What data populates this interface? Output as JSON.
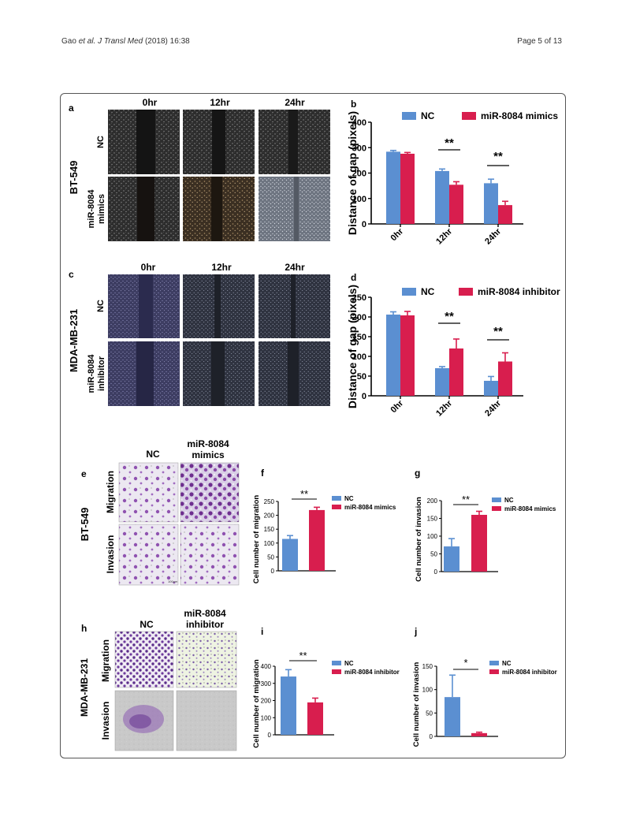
{
  "header": {
    "left_prefix": "Gao ",
    "left_italic": "et al. J Transl Med",
    "left_suffix": "  (2018) 16:38",
    "right": "Page 5 of 13"
  },
  "colors": {
    "nc": "#5b8fd1",
    "treat": "#d81e4e"
  },
  "panels": {
    "a": {
      "letter": "a",
      "cols": [
        "0hr",
        "12hr",
        "24hr"
      ],
      "rows": [
        "NC",
        "miR-8084",
        "mimics"
      ],
      "cell_line": "BT-549"
    },
    "c": {
      "letter": "c",
      "cols": [
        "0hr",
        "12hr",
        "24hr"
      ],
      "rows": [
        "NC",
        "miR-8084",
        "inhibitor"
      ],
      "cell_line": "MDA-MB-231"
    },
    "e": {
      "letter": "e",
      "cols": [
        "NC",
        "miR-8084",
        "mimics"
      ],
      "rows": [
        "Migration",
        "Invasion"
      ],
      "cell_line": "BT-549",
      "scale_label": "100μm"
    },
    "h": {
      "letter": "h",
      "cols": [
        "NC",
        "miR-8084",
        "inhibitor"
      ],
      "rows": [
        "Migration",
        "Invasion"
      ],
      "cell_line": "MDA-MB-231"
    }
  },
  "chart_data": [
    {
      "id": "b",
      "letter": "b",
      "type": "bar",
      "categories": [
        "0hr",
        "12hr",
        "24hr"
      ],
      "series": [
        {
          "name": "NC",
          "values": [
            284,
            208,
            160
          ],
          "errors": [
            5,
            8,
            16
          ]
        },
        {
          "name": "miR-8084 mimics",
          "values": [
            276,
            154,
            74
          ],
          "errors": [
            5,
            12,
            15
          ]
        }
      ],
      "ylabel": "Distance of gap (pixels)",
      "yticks": [
        0,
        100,
        200,
        300,
        400
      ],
      "ylim": [
        0,
        400
      ],
      "significance": [
        "",
        "**",
        "**"
      ],
      "legend": "top"
    },
    {
      "id": "d",
      "letter": "d",
      "type": "bar",
      "categories": [
        "0hr",
        "12hr",
        "24hr"
      ],
      "series": [
        {
          "name": "NC",
          "values": [
            206,
            70,
            38
          ],
          "errors": [
            7,
            4,
            11
          ]
        },
        {
          "name": "miR-8084  inhibitor",
          "values": [
            204,
            120,
            87
          ],
          "errors": [
            10,
            24,
            22
          ]
        }
      ],
      "ylabel": "Distance of gap (pixels)",
      "yticks": [
        0,
        50,
        100,
        150,
        200,
        250
      ],
      "ylim": [
        0,
        250
      ],
      "significance": [
        "",
        "**",
        "**"
      ],
      "legend": "top"
    },
    {
      "id": "f",
      "letter": "f",
      "type": "bar",
      "categories": [
        "",
        ""
      ],
      "series": [
        {
          "name": "NC",
          "value": 115,
          "error": 12
        },
        {
          "name": "miR-8084 mimics",
          "value": 219,
          "error": 10
        }
      ],
      "ylabel": "Cell number of migration",
      "yticks": [
        0,
        50,
        100,
        150,
        200,
        250
      ],
      "ylim": [
        0,
        250
      ],
      "significance": "**",
      "legend": "right"
    },
    {
      "id": "g",
      "letter": "g",
      "type": "bar",
      "categories": [
        "",
        ""
      ],
      "series": [
        {
          "name": "NC",
          "value": 71,
          "error": 22
        },
        {
          "name": "miR-8084 mimics",
          "value": 160,
          "error": 10
        }
      ],
      "ylabel": "Cell number of invasion",
      "yticks": [
        0,
        50,
        100,
        150,
        200
      ],
      "ylim": [
        0,
        200
      ],
      "significance": "**",
      "legend": "right"
    },
    {
      "id": "i",
      "letter": "i",
      "type": "bar",
      "categories": [
        "",
        ""
      ],
      "series": [
        {
          "name": "NC",
          "value": 340,
          "error": 40
        },
        {
          "name": "miR-8084 inhibitor",
          "value": 189,
          "error": 25
        }
      ],
      "ylabel": "Cell number of migration",
      "yticks": [
        0,
        100,
        200,
        300,
        400
      ],
      "ylim": [
        0,
        400
      ],
      "significance": "**",
      "legend": "right"
    },
    {
      "id": "j",
      "letter": "j",
      "type": "bar",
      "categories": [
        "",
        ""
      ],
      "series": [
        {
          "name": "NC",
          "value": 84,
          "error": 47
        },
        {
          "name": "miR-8084 inhibitor",
          "value": 7,
          "error": 2
        }
      ],
      "ylabel": "Cell number of invasion",
      "yticks": [
        0,
        50,
        100,
        150
      ],
      "ylim": [
        0,
        150
      ],
      "significance": "*",
      "legend": "right"
    }
  ]
}
